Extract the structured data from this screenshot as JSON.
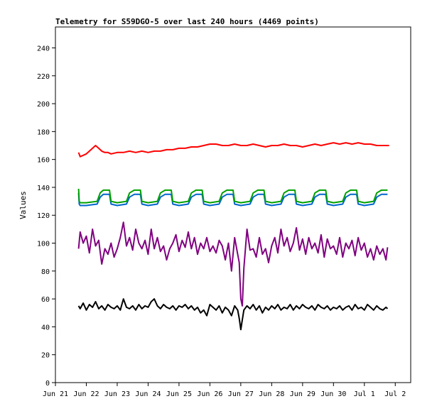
{
  "chart_data": {
    "type": "line",
    "title": "Telemetry for S59DGO-5 over last 240 hours (4469 points)",
    "xlabel": "",
    "ylabel": "Values",
    "xlim": [
      0,
      11.5
    ],
    "ylim": [
      0,
      255
    ],
    "grid": false,
    "legend": "none",
    "x_tick_positions": [
      0,
      1,
      2,
      3,
      4,
      5,
      6,
      7,
      8,
      9,
      10,
      11
    ],
    "x_tick_labels": [
      "Jun 21",
      "Jun 22",
      "Jun 23",
      "Jun 24",
      "Jun 25",
      "Jun 26",
      "Jun 27",
      "Jun 28",
      "Jun 29",
      "Jun 30",
      "Jul 1",
      "Jul 2"
    ],
    "y_ticks": [
      0,
      20,
      40,
      60,
      80,
      100,
      120,
      140,
      160,
      180,
      200,
      220,
      240
    ],
    "series": [
      {
        "color": "#ff0000",
        "x": [
          0.75,
          0.8,
          0.9,
          1.0,
          1.1,
          1.2,
          1.3,
          1.4,
          1.5,
          1.6,
          1.7,
          1.8,
          2.0,
          2.2,
          2.4,
          2.6,
          2.8,
          3.0,
          3.2,
          3.4,
          3.6,
          3.8,
          4.0,
          4.2,
          4.4,
          4.6,
          4.8,
          5.0,
          5.2,
          5.4,
          5.6,
          5.8,
          6.0,
          6.2,
          6.4,
          6.6,
          6.8,
          7.0,
          7.2,
          7.4,
          7.6,
          7.8,
          8.0,
          8.2,
          8.4,
          8.6,
          8.8,
          9.0,
          9.2,
          9.4,
          9.6,
          9.8,
          10.0,
          10.2,
          10.4,
          10.6,
          10.8
        ],
        "values": [
          165,
          162,
          163,
          164,
          166,
          168,
          170,
          168,
          166,
          165,
          165,
          164,
          165,
          165,
          166,
          165,
          166,
          165,
          166,
          166,
          167,
          167,
          168,
          168,
          169,
          169,
          170,
          171,
          171,
          170,
          170,
          171,
          170,
          170,
          171,
          170,
          169,
          170,
          170,
          171,
          170,
          170,
          169,
          170,
          171,
          170,
          171,
          172,
          171,
          172,
          171,
          172,
          171,
          171,
          170,
          170,
          170
        ]
      },
      {
        "color": "#0066cc",
        "x": [
          0.75,
          0.77,
          0.8,
          1.0,
          1.35,
          1.45,
          1.55,
          1.75,
          1.8,
          2.0,
          2.3,
          2.4,
          2.55,
          2.75,
          2.8,
          3.0,
          3.3,
          3.4,
          3.55,
          3.75,
          3.8,
          4.0,
          4.3,
          4.4,
          4.55,
          4.75,
          4.8,
          5.0,
          5.3,
          5.4,
          5.55,
          5.75,
          5.8,
          6.0,
          6.3,
          6.4,
          6.55,
          6.75,
          6.8,
          7.0,
          7.3,
          7.4,
          7.55,
          7.75,
          7.8,
          8.0,
          8.3,
          8.4,
          8.55,
          8.75,
          8.8,
          9.0,
          9.3,
          9.4,
          9.55,
          9.75,
          9.8,
          10.0,
          10.3,
          10.4,
          10.55,
          10.75
        ],
        "values": [
          136,
          128,
          127,
          127,
          128,
          133,
          135,
          135,
          128,
          127,
          128,
          133,
          135,
          135,
          128,
          127,
          128,
          133,
          135,
          135,
          128,
          127,
          128,
          133,
          135,
          135,
          128,
          127,
          128,
          133,
          135,
          135,
          128,
          127,
          128,
          133,
          135,
          135,
          128,
          127,
          128,
          133,
          135,
          135,
          128,
          127,
          128,
          133,
          135,
          135,
          128,
          127,
          128,
          133,
          135,
          135,
          128,
          127,
          128,
          133,
          135,
          135
        ]
      },
      {
        "color": "#00a000",
        "x": [
          0.75,
          0.77,
          0.8,
          1.0,
          1.35,
          1.45,
          1.55,
          1.75,
          1.8,
          2.0,
          2.3,
          2.4,
          2.55,
          2.75,
          2.8,
          3.0,
          3.3,
          3.4,
          3.55,
          3.75,
          3.8,
          4.0,
          4.3,
          4.4,
          4.55,
          4.75,
          4.8,
          5.0,
          5.3,
          5.4,
          5.55,
          5.75,
          5.8,
          6.0,
          6.3,
          6.4,
          6.55,
          6.75,
          6.8,
          7.0,
          7.3,
          7.4,
          7.55,
          7.75,
          7.8,
          8.0,
          8.3,
          8.4,
          8.55,
          8.75,
          8.8,
          9.0,
          9.3,
          9.4,
          9.55,
          9.75,
          9.8,
          10.0,
          10.3,
          10.4,
          10.55,
          10.75
        ],
        "values": [
          139,
          130,
          129,
          129,
          130,
          136,
          138,
          138,
          130,
          129,
          130,
          136,
          138,
          138,
          130,
          129,
          130,
          136,
          138,
          138,
          130,
          129,
          130,
          136,
          138,
          138,
          130,
          129,
          130,
          136,
          138,
          138,
          130,
          129,
          130,
          136,
          138,
          138,
          130,
          129,
          130,
          136,
          138,
          138,
          130,
          129,
          130,
          136,
          138,
          138,
          130,
          129,
          130,
          136,
          138,
          138,
          130,
          129,
          130,
          136,
          138,
          138
        ]
      },
      {
        "color": "#800080",
        "x": [
          0.75,
          0.8,
          0.9,
          1.0,
          1.1,
          1.2,
          1.3,
          1.4,
          1.5,
          1.6,
          1.7,
          1.8,
          1.9,
          2.0,
          2.1,
          2.2,
          2.3,
          2.4,
          2.5,
          2.6,
          2.7,
          2.8,
          2.9,
          3.0,
          3.1,
          3.2,
          3.3,
          3.4,
          3.5,
          3.6,
          3.7,
          3.8,
          3.9,
          4.0,
          4.1,
          4.2,
          4.3,
          4.4,
          4.5,
          4.6,
          4.7,
          4.8,
          4.9,
          5.0,
          5.1,
          5.2,
          5.3,
          5.4,
          5.5,
          5.6,
          5.7,
          5.8,
          5.9,
          5.95,
          6.0,
          6.05,
          6.1,
          6.2,
          6.3,
          6.4,
          6.5,
          6.6,
          6.7,
          6.8,
          6.9,
          7.0,
          7.1,
          7.2,
          7.3,
          7.4,
          7.5,
          7.6,
          7.7,
          7.8,
          7.9,
          8.0,
          8.1,
          8.2,
          8.3,
          8.4,
          8.5,
          8.6,
          8.7,
          8.8,
          8.9,
          9.0,
          9.1,
          9.2,
          9.3,
          9.4,
          9.5,
          9.6,
          9.7,
          9.8,
          9.9,
          10.0,
          10.1,
          10.2,
          10.3,
          10.4,
          10.5,
          10.6,
          10.7,
          10.75
        ],
        "values": [
          96,
          108,
          100,
          105,
          93,
          110,
          98,
          102,
          85,
          96,
          92,
          100,
          90,
          96,
          104,
          115,
          98,
          104,
          95,
          110,
          100,
          96,
          102,
          92,
          110,
          96,
          104,
          94,
          98,
          88,
          96,
          100,
          106,
          94,
          102,
          97,
          108,
          96,
          104,
          92,
          100,
          96,
          104,
          94,
          98,
          93,
          102,
          98,
          88,
          100,
          80,
          104,
          92,
          86,
          60,
          55,
          82,
          110,
          95,
          96,
          90,
          104,
          92,
          96,
          86,
          98,
          104,
          93,
          110,
          98,
          104,
          94,
          100,
          111,
          95,
          103,
          92,
          104,
          96,
          100,
          93,
          106,
          90,
          103,
          96,
          98,
          92,
          104,
          90,
          100,
          96,
          102,
          91,
          104,
          95,
          100,
          90,
          96,
          88,
          98,
          92,
          96,
          88,
          97
        ]
      },
      {
        "color": "#000000",
        "x": [
          0.75,
          0.8,
          0.9,
          1.0,
          1.1,
          1.2,
          1.3,
          1.4,
          1.5,
          1.6,
          1.7,
          1.8,
          1.9,
          2.0,
          2.1,
          2.2,
          2.3,
          2.4,
          2.5,
          2.6,
          2.7,
          2.8,
          2.9,
          3.0,
          3.1,
          3.2,
          3.3,
          3.4,
          3.5,
          3.6,
          3.7,
          3.8,
          3.9,
          4.0,
          4.1,
          4.2,
          4.3,
          4.4,
          4.5,
          4.6,
          4.7,
          4.8,
          4.9,
          5.0,
          5.1,
          5.2,
          5.3,
          5.4,
          5.5,
          5.6,
          5.7,
          5.8,
          5.9,
          5.95,
          6.0,
          6.05,
          6.1,
          6.2,
          6.3,
          6.4,
          6.5,
          6.6,
          6.7,
          6.8,
          6.9,
          7.0,
          7.1,
          7.2,
          7.3,
          7.4,
          7.5,
          7.6,
          7.7,
          7.8,
          7.9,
          8.0,
          8.1,
          8.2,
          8.3,
          8.4,
          8.5,
          8.6,
          8.7,
          8.8,
          8.9,
          9.0,
          9.1,
          9.2,
          9.3,
          9.4,
          9.5,
          9.6,
          9.7,
          9.8,
          9.9,
          10.0,
          10.1,
          10.2,
          10.3,
          10.4,
          10.5,
          10.6,
          10.7,
          10.75
        ],
        "values": [
          55,
          53,
          57,
          52,
          56,
          54,
          58,
          53,
          55,
          52,
          56,
          54,
          53,
          55,
          52,
          60,
          54,
          53,
          55,
          52,
          56,
          53,
          55,
          54,
          58,
          60,
          55,
          53,
          56,
          54,
          53,
          55,
          52,
          55,
          54,
          56,
          53,
          55,
          52,
          54,
          50,
          52,
          48,
          56,
          54,
          52,
          55,
          50,
          54,
          52,
          48,
          55,
          52,
          46,
          38,
          45,
          52,
          55,
          53,
          56,
          52,
          55,
          50,
          54,
          52,
          55,
          53,
          56,
          52,
          54,
          53,
          56,
          52,
          55,
          53,
          56,
          54,
          53,
          55,
          52,
          56,
          54,
          53,
          55,
          52,
          54,
          53,
          55,
          52,
          54,
          55,
          52,
          56,
          53,
          54,
          52,
          56,
          54,
          52,
          55,
          53,
          52,
          54,
          53
        ]
      }
    ]
  }
}
